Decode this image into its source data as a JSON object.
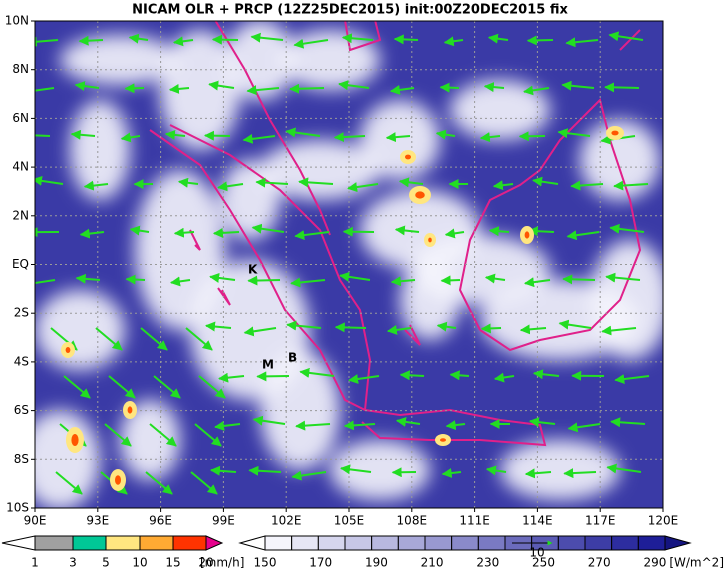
{
  "title": "NICAM OLR + PRCP (12Z25DEC2015) init:00Z20DEC2015 fix",
  "lon_ticks": [
    "90E",
    "93E",
    "96E",
    "99E",
    "102E",
    "105E",
    "108E",
    "111E",
    "114E",
    "117E",
    "120E"
  ],
  "lat_ticks": [
    "10N",
    "8N",
    "6N",
    "4N",
    "2N",
    "EQ",
    "2S",
    "4S",
    "6S",
    "8S",
    "10S"
  ],
  "map_labels": [
    "K",
    "M",
    "B"
  ],
  "vector_ref": "10",
  "precip_bar": {
    "labels": [
      "1",
      "3",
      "5",
      "10",
      "15",
      "20"
    ],
    "unit": "[mm/h]"
  },
  "olr_bar": {
    "labels": [
      "150",
      "170",
      "190",
      "210",
      "230",
      "250",
      "270",
      "290"
    ],
    "unit": "[W/m^2]"
  }
}
